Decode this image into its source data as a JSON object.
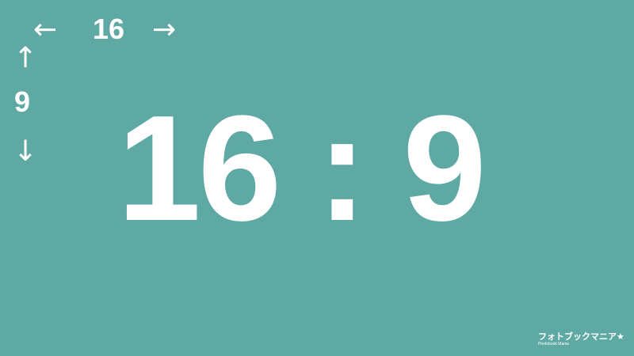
{
  "width_indicator": {
    "left_arrow": "←",
    "label": "16",
    "right_arrow": "→"
  },
  "height_indicator": {
    "up_arrow": "↑",
    "label": "9",
    "down_arrow": "↓"
  },
  "ratio_text": "16 : 9",
  "logo": {
    "main": "フォトブックマニア★",
    "sub": "Photobook Mania"
  },
  "colors": {
    "background": "#5fa9a5",
    "foreground": "#ffffff"
  }
}
